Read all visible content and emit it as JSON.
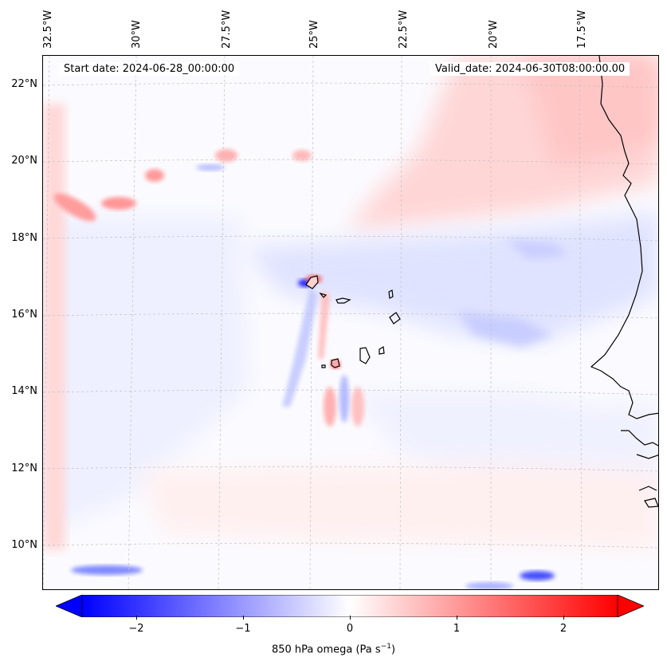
{
  "map": {
    "start_label": "Start date: 2024-06-28_00:00:00",
    "valid_label": "Valid_date: 2024-06-30T08:00:00.00",
    "lon_ticks": [
      "32.5°W",
      "30°W",
      "27.5°W",
      "25°W",
      "22.5°W",
      "20°W",
      "17.5°W"
    ],
    "lat_ticks": [
      "22°N",
      "20°N",
      "18°N",
      "16°N",
      "14°N",
      "12°N",
      "10°N"
    ],
    "variable": "850 hPa omega",
    "units": "Pa s",
    "units_exponent": "−1",
    "colormap": "bwr",
    "colors": {
      "negative": "#0000ff",
      "neutral": "#ffffff",
      "positive": "#ff0000",
      "coastline": "#000000",
      "grid": "#b0b0b0"
    }
  },
  "colorbar": {
    "ticks": [
      "−2",
      "−1",
      "0",
      "1",
      "2"
    ],
    "min": -2.7,
    "max": 2.7,
    "extend": "both"
  }
}
